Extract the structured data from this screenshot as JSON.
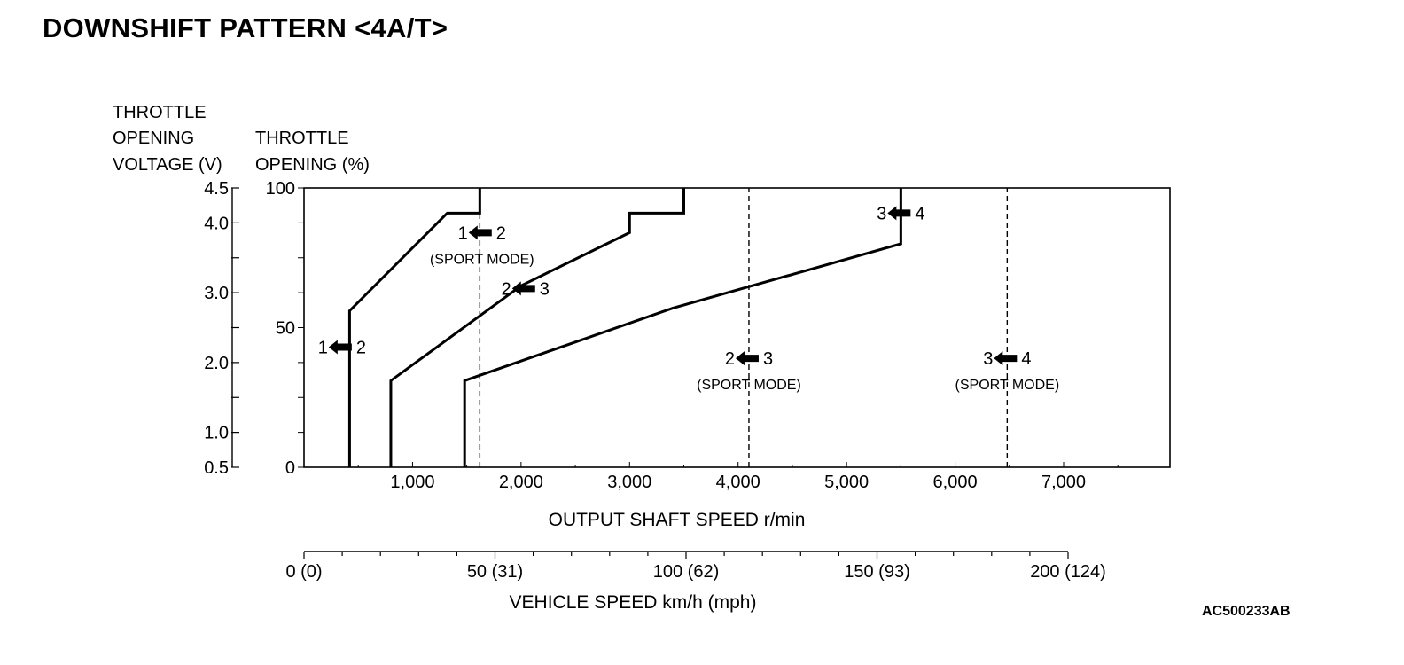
{
  "page": {
    "title": "DOWNSHIFT PATTERN <4A/T>",
    "figure_code": "AC500233AB"
  },
  "chart_data": {
    "type": "line",
    "title": "DOWNSHIFT PATTERN <4A/T>",
    "y_voltage_label": [
      "THROTTLE",
      "OPENING",
      "VOLTAGE (V)"
    ],
    "y_opening_label": [
      "THROTTLE",
      "OPENING (%)"
    ],
    "xlabel": "OUTPUT SHAFT SPEED r/min",
    "x2label": "VEHICLE SPEED km/h (mph)",
    "xlim": [
      0,
      8000
    ],
    "ylim": [
      0,
      100
    ],
    "x_ticks": [
      {
        "value": 1000,
        "label": "1,000"
      },
      {
        "value": 2000,
        "label": "2,000"
      },
      {
        "value": 3000,
        "label": "3,000"
      },
      {
        "value": 4000,
        "label": "4,000"
      },
      {
        "value": 5000,
        "label": "5,000"
      },
      {
        "value": 6000,
        "label": "6,000"
      },
      {
        "value": 7000,
        "label": "7,000"
      }
    ],
    "y_opening_ticks": [
      {
        "value": 0,
        "label": "0"
      },
      {
        "value": 50,
        "label": "50"
      },
      {
        "value": 100,
        "label": "100"
      }
    ],
    "y_voltage_ticks": [
      {
        "value": 0.5,
        "label": "0.5"
      },
      {
        "value": 1.0,
        "label": "1.0"
      },
      {
        "value": 1.5,
        "label": ""
      },
      {
        "value": 2.0,
        "label": "2.0"
      },
      {
        "value": 2.5,
        "label": ""
      },
      {
        "value": 3.0,
        "label": "3.0"
      },
      {
        "value": 3.5,
        "label": ""
      },
      {
        "value": 4.0,
        "label": "4.0"
      },
      {
        "value": 4.5,
        "label": "4.5"
      }
    ],
    "vehicle_speed_axis": {
      "range_kmh": [
        0,
        200
      ],
      "labels": [
        {
          "kmh": 0,
          "label": "0 (0)"
        },
        {
          "kmh": 50,
          "label": "50 (31)"
        },
        {
          "kmh": 100,
          "label": "100 (62)"
        },
        {
          "kmh": 150,
          "label": "150 (93)"
        },
        {
          "kmh": 200,
          "label": "200 (124)"
        }
      ]
    },
    "series": [
      {
        "points": [
          [
            420,
            0
          ],
          [
            420,
            56
          ],
          [
            1320,
            91
          ],
          [
            1620,
            91
          ],
          [
            1620,
            100
          ]
        ],
        "dashed": false
      },
      {
        "points": [
          [
            800,
            0
          ],
          [
            800,
            31
          ],
          [
            2000,
            65
          ],
          [
            3000,
            84
          ],
          [
            3000,
            91
          ],
          [
            3500,
            91
          ],
          [
            3500,
            100
          ]
        ],
        "dashed": false
      },
      {
        "points": [
          [
            1480,
            0
          ],
          [
            1480,
            31
          ],
          [
            3400,
            57
          ],
          [
            5500,
            80
          ],
          [
            5500,
            100
          ]
        ],
        "dashed": false
      },
      {
        "points": [
          [
            1620,
            0
          ],
          [
            1620,
            91
          ]
        ],
        "dashed": true
      },
      {
        "points": [
          [
            4100,
            0
          ],
          [
            4100,
            100
          ]
        ],
        "dashed": true
      },
      {
        "points": [
          [
            6480,
            0
          ],
          [
            6480,
            100
          ]
        ],
        "dashed": true
      }
    ],
    "annotations": [
      {
        "from": "1",
        "to": "2",
        "note": "",
        "x": 350,
        "y": 43
      },
      {
        "from": "1",
        "to": "2",
        "note": "(SPORT MODE)",
        "x": 1640,
        "y": 84
      },
      {
        "from": "2",
        "to": "3",
        "note": "",
        "x": 2040,
        "y": 64
      },
      {
        "from": "3",
        "to": "4",
        "note": "",
        "x": 5500,
        "y": 91
      },
      {
        "from": "2",
        "to": "3",
        "note": "(SPORT MODE)",
        "x": 4100,
        "y": 39
      },
      {
        "from": "3",
        "to": "4",
        "note": "(SPORT MODE)",
        "x": 6480,
        "y": 39
      }
    ]
  }
}
